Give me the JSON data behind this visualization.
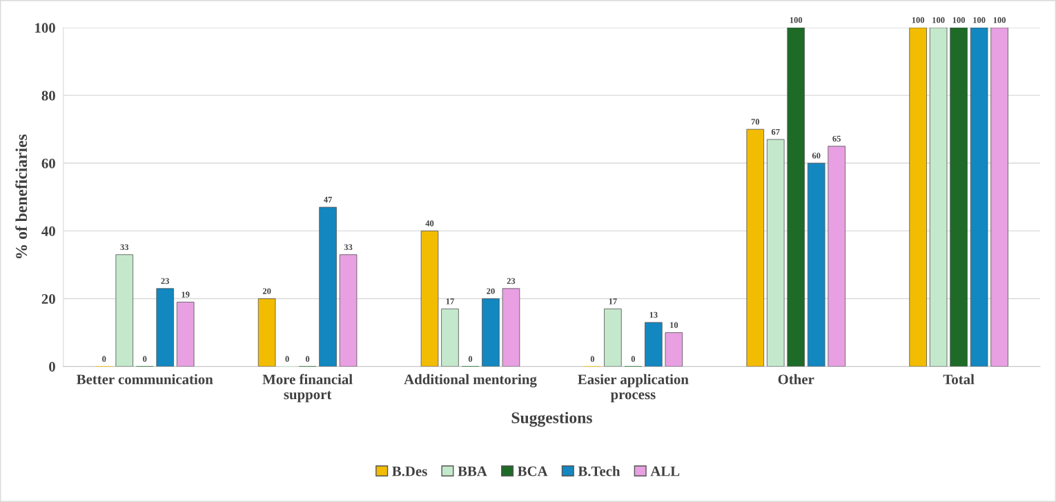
{
  "chart_data": {
    "type": "bar",
    "xlabel": "Suggestions",
    "ylabel": "% of beneficiaries",
    "categories": [
      "Better communication",
      "More financial support",
      "Additional mentoring",
      "Easier application process",
      "Other",
      "Total"
    ],
    "series": [
      {
        "name": "B.Des",
        "color": "#f2bc00",
        "values": [
          0,
          20,
          40,
          0,
          70,
          100
        ]
      },
      {
        "name": "BBA",
        "color": "#c4e8cc",
        "values": [
          33,
          0,
          17,
          17,
          67,
          100
        ]
      },
      {
        "name": "BCA",
        "color": "#1e6b28",
        "values": [
          0,
          0,
          0,
          0,
          100,
          100
        ]
      },
      {
        "name": "B.Tech",
        "color": "#1387c0",
        "values": [
          23,
          47,
          20,
          13,
          60,
          100
        ]
      },
      {
        "name": "ALL",
        "color": "#e8a0e2",
        "values": [
          19,
          33,
          23,
          10,
          65,
          100
        ]
      }
    ],
    "ylim": [
      0,
      100
    ],
    "yticks": [
      0,
      20,
      40,
      60,
      80,
      100
    ],
    "grid": "y",
    "legend": "bottom",
    "data_labels": true
  }
}
